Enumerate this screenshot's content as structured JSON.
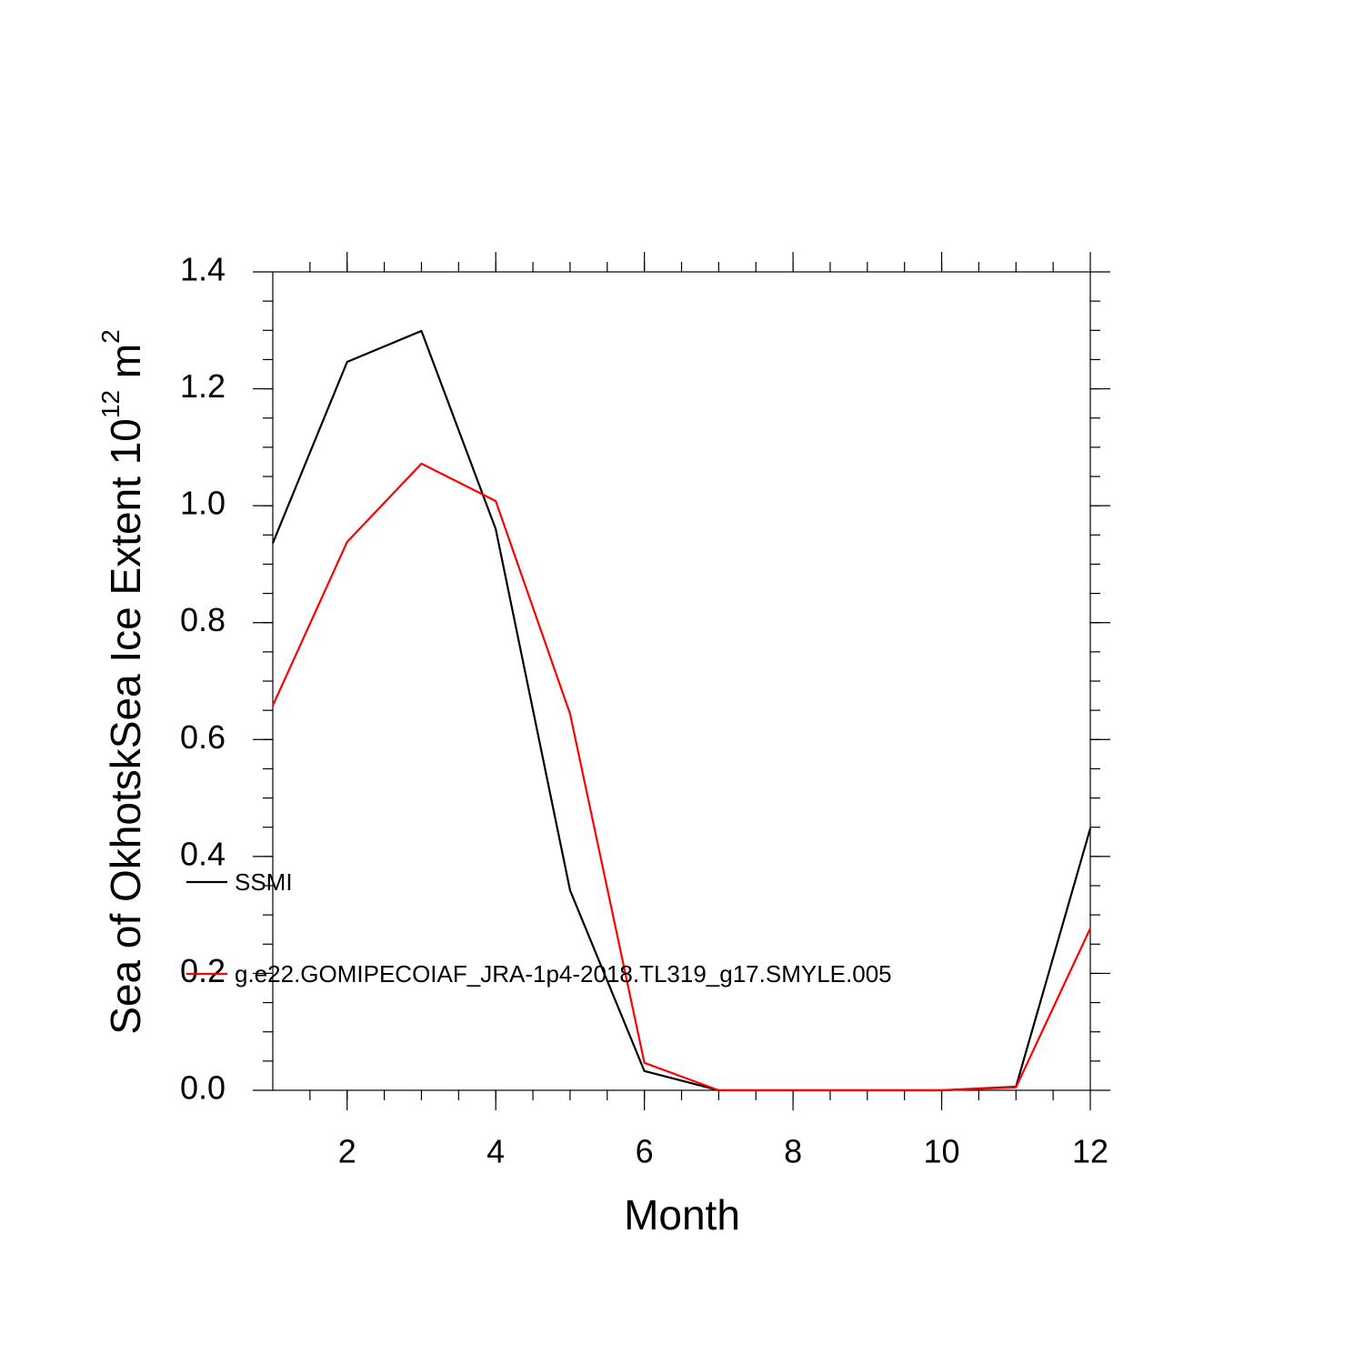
{
  "chart_data": {
    "type": "line",
    "xlabel": "Month",
    "ylabel_parts": [
      "Sea of OkhotskSea Ice Extent 10",
      "12",
      " m",
      "2"
    ],
    "x": [
      1,
      2,
      3,
      4,
      5,
      6,
      7,
      8,
      9,
      10,
      11,
      12
    ],
    "series": [
      {
        "name": "SSMI",
        "color": "#000000",
        "values": [
          0.936,
          1.246,
          1.299,
          0.96,
          0.342,
          0.033,
          0.0,
          0.0,
          0.0,
          0.0,
          0.006,
          0.448
        ]
      },
      {
        "name": "g.e22.GOMIPECOIAF_JRA-1p4-2018.TL319_g17.SMYLE.005",
        "color": "#ff0000",
        "values": [
          0.658,
          0.938,
          1.072,
          1.008,
          0.644,
          0.047,
          0.0,
          0.0,
          0.0,
          0.0,
          0.005,
          0.277
        ]
      }
    ],
    "xlim": [
      1,
      12
    ],
    "xticks": [
      2,
      4,
      6,
      8,
      10,
      12
    ],
    "ylim": [
      0,
      1.4
    ],
    "yticks": [
      {
        "value": 0,
        "label": "0.0"
      },
      {
        "value": 0.2,
        "label": "0.2"
      },
      {
        "value": 0.4,
        "label": "0.4"
      },
      {
        "value": 0.6,
        "label": "0.6"
      },
      {
        "value": 0.8,
        "label": "0.8"
      },
      {
        "value": 1.0,
        "label": "1.0"
      },
      {
        "value": 1.2,
        "label": "1.2"
      },
      {
        "value": 1.4,
        "label": "1.4"
      }
    ],
    "grid": false
  }
}
